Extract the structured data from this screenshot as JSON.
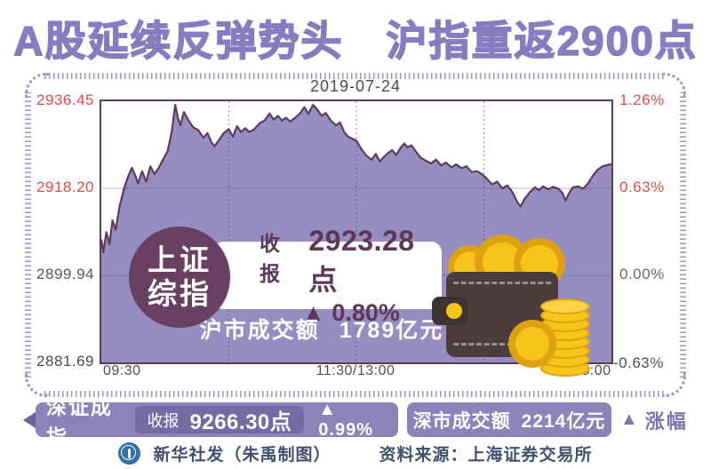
{
  "title": "A股延续反弹势头　沪指重返2900点",
  "chart_data": {
    "type": "area",
    "date": "2019-07-24",
    "index_name": "上证综指",
    "index_badge_lines": [
      "上证",
      "综指"
    ],
    "close_label": "收报",
    "close_value": "2923.28点",
    "change_text": "▲ 0.80%",
    "turnover_label": "沪市成交额",
    "turnover_value": "1789亿元",
    "x_ticks": [
      "09:30",
      "11:30/13:00",
      "15:00"
    ],
    "y_axis_left": [
      {
        "label": "2936.45",
        "color": "#e14b4b"
      },
      {
        "label": "2918.20",
        "color": "#e14b4b"
      },
      {
        "label": "2899.94",
        "color": "#575757"
      },
      {
        "label": "2881.69",
        "color": "#4a4a4a"
      }
    ],
    "y_axis_right": [
      {
        "label": "1.26%",
        "color": "#e14b4b"
      },
      {
        "label": "0.63%",
        "color": "#e14b4b"
      },
      {
        "label": "0.00%",
        "color": "#6a6a6a"
      },
      {
        "label": "-0.63%",
        "color": "#46534c"
      }
    ],
    "ylim": [
      2881.69,
      2936.45
    ],
    "prev_close": 2899.94,
    "h_gridlines": [
      2918.2,
      2899.94
    ],
    "v_gridlines": [
      0.25,
      0.5,
      0.75
    ],
    "grid": true,
    "legend_position": "none",
    "series": [
      {
        "name": "上证综指",
        "points": [
          [
            0.0,
            2907.5
          ],
          [
            0.004,
            2904.8
          ],
          [
            0.01,
            2909.0
          ],
          [
            0.016,
            2906.5
          ],
          [
            0.022,
            2911.5
          ],
          [
            0.028,
            2909.5
          ],
          [
            0.036,
            2914.5
          ],
          [
            0.044,
            2918.0
          ],
          [
            0.052,
            2920.5
          ],
          [
            0.06,
            2922.5
          ],
          [
            0.066,
            2921.0
          ],
          [
            0.072,
            2919.2
          ],
          [
            0.08,
            2921.8
          ],
          [
            0.088,
            2919.6
          ],
          [
            0.096,
            2922.8
          ],
          [
            0.104,
            2921.2
          ],
          [
            0.112,
            2922.4
          ],
          [
            0.12,
            2924.0
          ],
          [
            0.13,
            2926.0
          ],
          [
            0.138,
            2930.0
          ],
          [
            0.145,
            2935.7
          ],
          [
            0.15,
            2933.0
          ],
          [
            0.155,
            2931.4
          ],
          [
            0.162,
            2934.2
          ],
          [
            0.17,
            2932.6
          ],
          [
            0.18,
            2931.0
          ],
          [
            0.19,
            2930.4
          ],
          [
            0.2,
            2928.8
          ],
          [
            0.208,
            2929.8
          ],
          [
            0.216,
            2927.8
          ],
          [
            0.222,
            2927.0
          ],
          [
            0.23,
            2928.2
          ],
          [
            0.24,
            2929.8
          ],
          [
            0.25,
            2930.6
          ],
          [
            0.258,
            2929.0
          ],
          [
            0.266,
            2931.2
          ],
          [
            0.274,
            2930.0
          ],
          [
            0.282,
            2930.8
          ],
          [
            0.29,
            2930.0
          ],
          [
            0.3,
            2930.6
          ],
          [
            0.31,
            2931.8
          ],
          [
            0.32,
            2932.4
          ],
          [
            0.33,
            2933.9
          ],
          [
            0.338,
            2932.6
          ],
          [
            0.346,
            2933.4
          ],
          [
            0.354,
            2932.4
          ],
          [
            0.362,
            2933.0
          ],
          [
            0.37,
            2932.2
          ],
          [
            0.38,
            2933.0
          ],
          [
            0.39,
            2934.0
          ],
          [
            0.398,
            2935.2
          ],
          [
            0.406,
            2933.8
          ],
          [
            0.415,
            2935.7
          ],
          [
            0.424,
            2934.6
          ],
          [
            0.432,
            2933.4
          ],
          [
            0.44,
            2934.0
          ],
          [
            0.45,
            2932.4
          ],
          [
            0.46,
            2931.4
          ],
          [
            0.468,
            2932.0
          ],
          [
            0.476,
            2930.0
          ],
          [
            0.484,
            2929.0
          ],
          [
            0.492,
            2928.6
          ],
          [
            0.5,
            2928.2
          ],
          [
            0.51,
            2926.4
          ],
          [
            0.52,
            2925.0
          ],
          [
            0.53,
            2924.2
          ],
          [
            0.538,
            2925.4
          ],
          [
            0.546,
            2923.8
          ],
          [
            0.554,
            2924.8
          ],
          [
            0.562,
            2925.6
          ],
          [
            0.57,
            2926.2
          ],
          [
            0.578,
            2925.2
          ],
          [
            0.586,
            2926.6
          ],
          [
            0.594,
            2927.6
          ],
          [
            0.6,
            2926.8
          ],
          [
            0.608,
            2927.2
          ],
          [
            0.616,
            2926.0
          ],
          [
            0.626,
            2924.6
          ],
          [
            0.636,
            2924.0
          ],
          [
            0.646,
            2923.4
          ],
          [
            0.656,
            2924.2
          ],
          [
            0.666,
            2923.0
          ],
          [
            0.676,
            2923.6
          ],
          [
            0.686,
            2922.6
          ],
          [
            0.696,
            2923.2
          ],
          [
            0.706,
            2922.4
          ],
          [
            0.716,
            2922.8
          ],
          [
            0.726,
            2921.6
          ],
          [
            0.736,
            2921.8
          ],
          [
            0.746,
            2921.2
          ],
          [
            0.756,
            2920.2
          ],
          [
            0.766,
            2919.0
          ],
          [
            0.776,
            2919.6
          ],
          [
            0.786,
            2918.2
          ],
          [
            0.796,
            2918.8
          ],
          [
            0.806,
            2917.4
          ],
          [
            0.816,
            2915.2
          ],
          [
            0.822,
            2914.4
          ],
          [
            0.83,
            2916.0
          ],
          [
            0.84,
            2917.4
          ],
          [
            0.85,
            2918.4
          ],
          [
            0.858,
            2917.8
          ],
          [
            0.866,
            2918.6
          ],
          [
            0.876,
            2918.0
          ],
          [
            0.886,
            2918.5
          ],
          [
            0.896,
            2918.1
          ],
          [
            0.904,
            2917.2
          ],
          [
            0.91,
            2915.6
          ],
          [
            0.916,
            2917.0
          ],
          [
            0.924,
            2918.4
          ],
          [
            0.934,
            2918.6
          ],
          [
            0.944,
            2918.1
          ],
          [
            0.954,
            2919.2
          ],
          [
            0.962,
            2920.6
          ],
          [
            0.972,
            2922.0
          ],
          [
            0.982,
            2922.8
          ],
          [
            1.0,
            2923.3
          ]
        ]
      }
    ]
  },
  "footer_bar": {
    "index_name": "深证成指",
    "close_label": "收报",
    "close_value": "9266.30点",
    "change_text": "▲ 0.99%",
    "turnover_label": "深市成交额",
    "turnover_value": "2214亿元",
    "legend_symbol": "▲",
    "legend_label": "涨幅"
  },
  "credits": {
    "publisher": "新华社发（朱禹制图）",
    "source": "资料来源：上海证券交易所"
  },
  "colors": {
    "title_purple": "#877cbf",
    "area_fill": "#968dc1",
    "line_plum": "#5e3b58",
    "grid_plum": "#5e3b58",
    "up_red": "#e14b4b",
    "down_green": "#46534c",
    "badge_plum": "#6a4062",
    "text_plum": "#5c3757",
    "bar_purple": "#8c83b8",
    "bar_inner_purple": "#746aa4",
    "bar_tip_purple": "#6c629e",
    "legend_purple": "#7e74b0",
    "stitch_purple": "#9c92c6",
    "credit_navy": "#41506b",
    "coin_gold": "#f7c51a",
    "coin_rim": "#dfa011",
    "wallet_brown": "#4b3d3e"
  }
}
